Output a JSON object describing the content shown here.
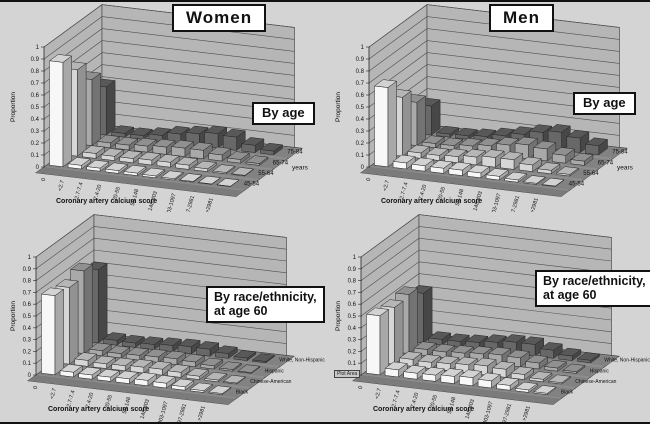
{
  "figure": {
    "column_titles": [
      "Women",
      "Men"
    ],
    "plot_area_tooltip": "Plot Area"
  },
  "style": {
    "chart_background": "#d4d4d4",
    "wall_fill": "#b6b6b6",
    "floor_fill": "#8e8e8e",
    "floor_band_fill": "#828282",
    "floor_front_fill": "#7b7b7b",
    "gridline_color": "#4f4f4f",
    "edge_color": "#3c3c3c",
    "axis_text_color": "#111111",
    "bar_stroke": "#262626",
    "series_colors_front_to_back": [
      "#f7f7f7",
      "#d6d6d6",
      "#a9a9a9",
      "#686868"
    ]
  },
  "chart_data": [
    {
      "type": "bar",
      "variant": "3d-bar",
      "panel": "top-left",
      "group": "Women",
      "annotation_lines": [
        "By age"
      ],
      "title": "Women — By age",
      "xlabel": "Coronary artery calcium score",
      "ylabel": "Proportion",
      "depth_axis_label": "years",
      "ylim": [
        0,
        1
      ],
      "yticks": [
        "0",
        "0.1",
        "0.2",
        "0.3",
        "0.4",
        "0.5",
        "0.6",
        "0.7",
        "0.8",
        "0.9",
        "1"
      ],
      "grid": true,
      "legend_position": "depth-axis-right",
      "categories": [
        "0",
        "<2.7",
        "2.7-7.4",
        "7.4-20",
        "20-55",
        "55-148",
        "148-403",
        "403-1097",
        "1097-2981",
        ">2981"
      ],
      "depth_order": "front-to-back",
      "series": [
        {
          "name": "45-54",
          "values": [
            0.87,
            0.03,
            0.025,
            0.022,
            0.02,
            0.015,
            0.01,
            0.006,
            0.003,
            0.002
          ]
        },
        {
          "name": "55-64",
          "values": [
            0.72,
            0.04,
            0.035,
            0.035,
            0.04,
            0.04,
            0.035,
            0.022,
            0.01,
            0.005
          ]
        },
        {
          "name": "65-74",
          "values": [
            0.55,
            0.04,
            0.04,
            0.05,
            0.06,
            0.07,
            0.07,
            0.05,
            0.03,
            0.015
          ]
        },
        {
          "name": "75-84",
          "values": [
            0.4,
            0.03,
            0.03,
            0.05,
            0.08,
            0.1,
            0.12,
            0.11,
            0.06,
            0.03
          ]
        }
      ]
    },
    {
      "type": "bar",
      "variant": "3d-bar",
      "panel": "top-right",
      "group": "Men",
      "annotation_lines": [
        "By age"
      ],
      "title": "Men — By age",
      "xlabel": "Coronary artery calcium score",
      "ylabel": "Proportion",
      "depth_axis_label": "years",
      "ylim": [
        0,
        1
      ],
      "yticks": [
        "0",
        "0.1",
        "0.2",
        "0.3",
        "0.4",
        "0.5",
        "0.6",
        "0.7",
        "0.8",
        "0.9",
        "1"
      ],
      "grid": true,
      "legend_position": "depth-axis-right",
      "categories": [
        "0",
        "<2.7",
        "2.7-7.4",
        "7.4-20",
        "20-55",
        "55-148",
        "148-403",
        "403-1097",
        "1097-2981",
        ">2981"
      ],
      "depth_order": "front-to-back",
      "series": [
        {
          "name": "45-54",
          "values": [
            0.66,
            0.05,
            0.045,
            0.042,
            0.045,
            0.04,
            0.03,
            0.018,
            0.008,
            0.004
          ]
        },
        {
          "name": "55-64",
          "values": [
            0.49,
            0.045,
            0.042,
            0.05,
            0.065,
            0.08,
            0.08,
            0.055,
            0.028,
            0.012
          ]
        },
        {
          "name": "65-74",
          "values": [
            0.36,
            0.035,
            0.035,
            0.05,
            0.07,
            0.095,
            0.115,
            0.1,
            0.065,
            0.035
          ]
        },
        {
          "name": "75-84",
          "values": [
            0.24,
            0.025,
            0.028,
            0.04,
            0.065,
            0.095,
            0.13,
            0.15,
            0.12,
            0.075
          ]
        }
      ]
    },
    {
      "type": "bar",
      "variant": "3d-bar",
      "panel": "bottom-left",
      "group": "Women",
      "annotation_lines": [
        "By race/ethnicity,",
        "at age 60"
      ],
      "title": "Women — By race/ethnicity, at age 60",
      "xlabel": "Coronary artery calcium score",
      "ylabel": "Proportion",
      "depth_axis_label": "",
      "ylim": [
        0,
        1
      ],
      "yticks": [
        "0",
        "0.1",
        "0.2",
        "0.3",
        "0.4",
        "0.5",
        "0.6",
        "0.7",
        "0.8",
        "0.9",
        "1"
      ],
      "grid": true,
      "legend_position": "depth-axis-right",
      "categories": [
        "0",
        "<2.7",
        "2.7-7.4",
        "7.4-20",
        "20-55",
        "55-148",
        "148-403",
        "403-1097",
        "1097-2981",
        ">2981"
      ],
      "depth_order": "front-to-back",
      "series": [
        {
          "name": "Black",
          "values": [
            0.67,
            0.04,
            0.035,
            0.035,
            0.04,
            0.045,
            0.04,
            0.028,
            0.014,
            0.008
          ]
        },
        {
          "name": "Chinese-American",
          "values": [
            0.65,
            0.05,
            0.04,
            0.042,
            0.048,
            0.05,
            0.042,
            0.028,
            0.014,
            0.007
          ]
        },
        {
          "name": "Hispanic",
          "values": [
            0.7,
            0.042,
            0.036,
            0.04,
            0.045,
            0.048,
            0.04,
            0.026,
            0.013,
            0.006
          ]
        },
        {
          "name": "White, Non-Hispanic",
          "values": [
            0.62,
            0.04,
            0.036,
            0.042,
            0.052,
            0.06,
            0.058,
            0.04,
            0.02,
            0.01
          ]
        }
      ]
    },
    {
      "type": "bar",
      "variant": "3d-bar",
      "panel": "bottom-right",
      "group": "Men",
      "annotation_lines": [
        "By race/ethnicity,",
        "at age 60"
      ],
      "title": "Men — By race/ethnicity, at age 60",
      "xlabel": "Coronary artery calcium score",
      "ylabel": "Proportion",
      "depth_axis_label": "",
      "ylim": [
        0,
        1
      ],
      "yticks": [
        "0",
        "0.1",
        "0.2",
        "0.3",
        "0.4",
        "0.5",
        "0.6",
        "0.7",
        "0.8",
        "0.9",
        "1"
      ],
      "grid": true,
      "legend_position": "depth-axis-right",
      "categories": [
        "0",
        "<2.7",
        "2.7-7.4",
        "7.4-20",
        "20-55",
        "55-148",
        "148-403",
        "403-1097",
        "1097-2981",
        ">2981"
      ],
      "depth_order": "front-to-back",
      "series": [
        {
          "name": "Black",
          "values": [
            0.5,
            0.06,
            0.05,
            0.052,
            0.06,
            0.068,
            0.06,
            0.04,
            0.02,
            0.01
          ]
        },
        {
          "name": "Chinese-American",
          "values": [
            0.48,
            0.058,
            0.052,
            0.058,
            0.068,
            0.078,
            0.068,
            0.042,
            0.02,
            0.01
          ]
        },
        {
          "name": "Hispanic",
          "values": [
            0.5,
            0.052,
            0.05,
            0.058,
            0.07,
            0.08,
            0.075,
            0.05,
            0.026,
            0.013
          ]
        },
        {
          "name": "White, Non-Hispanic",
          "values": [
            0.42,
            0.048,
            0.048,
            0.058,
            0.078,
            0.098,
            0.098,
            0.068,
            0.038,
            0.02
          ]
        }
      ]
    }
  ]
}
